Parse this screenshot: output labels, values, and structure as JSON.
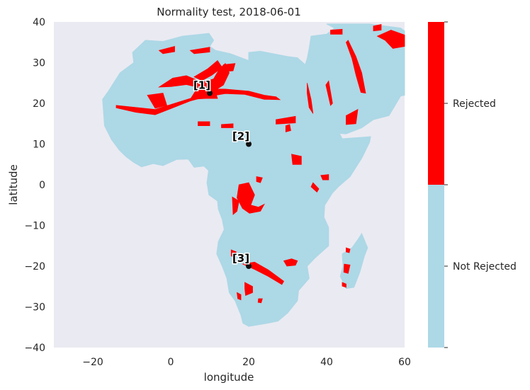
{
  "chart_data": {
    "type": "heatmap",
    "title": "Normality test, 2018-06-01",
    "xlabel": "longitude",
    "ylabel": "latitude",
    "xlim": [
      -30,
      60
    ],
    "ylim": [
      -40,
      40
    ],
    "xticks": [
      -20,
      0,
      20,
      40,
      60
    ],
    "xtick_labels": [
      "−20",
      "0",
      "20",
      "40",
      "60"
    ],
    "yticks": [
      -40,
      -30,
      -20,
      -10,
      0,
      10,
      20,
      30,
      40
    ],
    "ytick_labels": [
      "−40",
      "−30",
      "−20",
      "−10",
      "0",
      "10",
      "20",
      "30",
      "40"
    ],
    "grid": false,
    "background_color": "#eaeaf2",
    "categories": [
      {
        "label": "Not Rejected",
        "color": "#add8e6"
      },
      {
        "label": "Rejected",
        "color": "#ff0000"
      }
    ],
    "colorbar": {
      "labels": [
        "Not Rejected",
        "Rejected"
      ]
    },
    "markers": [
      {
        "label": "[1]",
        "lon": 10,
        "lat": 22.5
      },
      {
        "label": "[2]",
        "lon": 20,
        "lat": 10
      },
      {
        "label": "[3]",
        "lon": 20,
        "lat": -20
      }
    ],
    "land_outline": [
      [
        -17,
        14.5
      ],
      [
        -17.5,
        21
      ],
      [
        -16,
        23
      ],
      [
        -13,
        27.5
      ],
      [
        -9.5,
        30
      ],
      [
        -9.8,
        32.5
      ],
      [
        -6.5,
        35.5
      ],
      [
        -2,
        35.2
      ],
      [
        3,
        36.5
      ],
      [
        9.8,
        37.2
      ],
      [
        11,
        35.5
      ],
      [
        10,
        34
      ],
      [
        11.5,
        33
      ],
      [
        15.3,
        32.2
      ],
      [
        20,
        30.5
      ],
      [
        20,
        32.5
      ],
      [
        23,
        32.8
      ],
      [
        30,
        31.5
      ],
      [
        32.5,
        31.2
      ],
      [
        34.5,
        29.5
      ],
      [
        35,
        31
      ],
      [
        35.5,
        33.5
      ],
      [
        36,
        36.5
      ],
      [
        40,
        37
      ],
      [
        42,
        38.5
      ],
      [
        40,
        39.5
      ],
      [
        51,
        39.5
      ],
      [
        59,
        38.5
      ],
      [
        60,
        37.8
      ],
      [
        60,
        22
      ],
      [
        59,
        21.8
      ],
      [
        56,
        17
      ],
      [
        52,
        16
      ],
      [
        49,
        14
      ],
      [
        45,
        12.5
      ],
      [
        43.3,
        12.6
      ],
      [
        44,
        11.3
      ],
      [
        51.3,
        11.8
      ],
      [
        51,
        10.4
      ],
      [
        49,
        6.5
      ],
      [
        46,
        2
      ],
      [
        43,
        -0.5
      ],
      [
        41.5,
        -2
      ],
      [
        39.5,
        -5
      ],
      [
        39.3,
        -8
      ],
      [
        40.5,
        -10.5
      ],
      [
        40.5,
        -15
      ],
      [
        37,
        -18
      ],
      [
        35,
        -20
      ],
      [
        35.5,
        -23
      ],
      [
        32.8,
        -26
      ],
      [
        32.5,
        -28.5
      ],
      [
        30,
        -31.5
      ],
      [
        27.5,
        -33.5
      ],
      [
        25,
        -34
      ],
      [
        20,
        -34.8
      ],
      [
        18.5,
        -34
      ],
      [
        18,
        -32
      ],
      [
        16.5,
        -28.5
      ],
      [
        15,
        -26.5
      ],
      [
        14.4,
        -23
      ],
      [
        13.2,
        -20
      ],
      [
        11.8,
        -17
      ],
      [
        12.2,
        -14
      ],
      [
        13.7,
        -11
      ],
      [
        13.2,
        -8.5
      ],
      [
        12.2,
        -6
      ],
      [
        12,
        -4
      ],
      [
        9.8,
        -2.5
      ],
      [
        9.3,
        0.5
      ],
      [
        9.7,
        3.5
      ],
      [
        8.5,
        4.6
      ],
      [
        6,
        4.3
      ],
      [
        4.5,
        6.3
      ],
      [
        1.5,
        6.2
      ],
      [
        -2,
        4.7
      ],
      [
        -4.5,
        5.2
      ],
      [
        -7.5,
        4.4
      ],
      [
        -9.5,
        5.5
      ],
      [
        -11.5,
        6.9
      ],
      [
        -13.2,
        8.5
      ],
      [
        -15.2,
        11.1
      ]
    ],
    "rejected_regions": [
      [
        [
          -14,
          19.5
        ],
        [
          -9,
          19
        ],
        [
          -4,
          18.5
        ],
        [
          1,
          20
        ],
        [
          6,
          21.5
        ],
        [
          10,
          23.5
        ],
        [
          14,
          23.5
        ],
        [
          20,
          23
        ],
        [
          24,
          22
        ],
        [
          27,
          21.6
        ],
        [
          28,
          20.9
        ],
        [
          24,
          21
        ],
        [
          19,
          22.2
        ],
        [
          14,
          22.4
        ],
        [
          9,
          21.6
        ],
        [
          5,
          20.6
        ],
        [
          0,
          18.7
        ],
        [
          -4,
          17.2
        ],
        [
          -9,
          17.8
        ],
        [
          -14,
          18.9
        ]
      ],
      [
        [
          -3,
          24
        ],
        [
          0.5,
          26.2
        ],
        [
          4,
          26.8
        ],
        [
          8,
          25.2
        ],
        [
          11,
          26
        ],
        [
          12.5,
          28.5
        ],
        [
          14,
          29.8
        ],
        [
          15,
          27.5
        ],
        [
          13.5,
          24.5
        ],
        [
          11,
          23
        ],
        [
          8,
          23.7
        ],
        [
          4,
          24.6
        ],
        [
          0,
          24.1
        ]
      ],
      [
        [
          6,
          26.5
        ],
        [
          9.5,
          28.5
        ],
        [
          12,
          30.5
        ],
        [
          13.2,
          28.8
        ],
        [
          10.5,
          26.9
        ],
        [
          8,
          25.6
        ]
      ],
      [
        [
          5,
          21
        ],
        [
          9,
          21.2
        ],
        [
          12,
          21.2
        ],
        [
          11,
          24
        ],
        [
          7,
          24
        ]
      ],
      [
        [
          -6,
          22
        ],
        [
          -2,
          22.5
        ],
        [
          -1,
          19.5
        ],
        [
          -4,
          18.8
        ]
      ],
      [
        [
          -3,
          33
        ],
        [
          1,
          34
        ],
        [
          1,
          32.7
        ],
        [
          -2,
          32.2
        ]
      ],
      [
        [
          5,
          33
        ],
        [
          10,
          33.8
        ],
        [
          10,
          32.6
        ],
        [
          6,
          32.2
        ]
      ],
      [
        [
          13.5,
          29.5
        ],
        [
          16.5,
          29.8
        ],
        [
          16,
          28
        ],
        [
          14,
          27.8
        ]
      ],
      [
        [
          7,
          15.5
        ],
        [
          10,
          15.5
        ],
        [
          10,
          14.5
        ],
        [
          7,
          14.5
        ]
      ],
      [
        [
          13,
          14.8
        ],
        [
          16,
          15
        ],
        [
          16,
          14
        ],
        [
          13,
          14
        ]
      ],
      [
        [
          27,
          16
        ],
        [
          32,
          16.8
        ],
        [
          32,
          15.2
        ],
        [
          27,
          14.9
        ]
      ],
      [
        [
          35,
          25
        ],
        [
          36,
          21
        ],
        [
          36.5,
          17.5
        ],
        [
          35.5,
          19
        ],
        [
          35,
          22.5
        ]
      ],
      [
        [
          45.5,
          35.5
        ],
        [
          47.5,
          31.5
        ],
        [
          49,
          27.5
        ],
        [
          50,
          22.5
        ],
        [
          48.8,
          22.7
        ],
        [
          47.5,
          27
        ],
        [
          46.5,
          31
        ],
        [
          45,
          35
        ]
      ],
      [
        [
          40.5,
          25.5
        ],
        [
          41.5,
          20
        ],
        [
          41,
          19.5
        ],
        [
          39.8,
          24.5
        ]
      ],
      [
        [
          45,
          17
        ],
        [
          48,
          18.5
        ],
        [
          47.5,
          15
        ],
        [
          45,
          14.8
        ]
      ],
      [
        [
          53,
          36.5
        ],
        [
          56.5,
          38
        ],
        [
          60,
          36.8
        ],
        [
          60,
          34
        ],
        [
          57,
          33.5
        ],
        [
          55,
          35.5
        ]
      ],
      [
        [
          52,
          39
        ],
        [
          54,
          39.4
        ],
        [
          54,
          38
        ],
        [
          52,
          37.8
        ]
      ],
      [
        [
          41,
          38
        ],
        [
          44,
          38.2
        ],
        [
          44,
          37
        ],
        [
          41,
          37
        ]
      ],
      [
        [
          17.5,
          0
        ],
        [
          20,
          0.5
        ],
        [
          21.5,
          -2.5
        ],
        [
          20.5,
          -5
        ],
        [
          22.5,
          -5.5
        ],
        [
          24,
          -4.8
        ],
        [
          23,
          -6.5
        ],
        [
          20.2,
          -7
        ],
        [
          18.4,
          -5.8
        ],
        [
          17,
          -3.2
        ]
      ],
      [
        [
          15.8,
          -3
        ],
        [
          17.5,
          -4
        ],
        [
          17,
          -6.5
        ],
        [
          16,
          -7.3
        ]
      ],
      [
        [
          31,
          7.5
        ],
        [
          33.5,
          7
        ],
        [
          33.5,
          5
        ],
        [
          31.3,
          5
        ]
      ],
      [
        [
          22,
          2
        ],
        [
          23.5,
          1.7
        ],
        [
          23,
          0.5
        ],
        [
          22,
          0.8
        ]
      ],
      [
        [
          36.5,
          0.5
        ],
        [
          38,
          -1
        ],
        [
          37.5,
          -1.8
        ],
        [
          36,
          -0.5
        ]
      ],
      [
        [
          29.5,
          14.5
        ],
        [
          30.5,
          14.8
        ],
        [
          30.8,
          13.3
        ],
        [
          29.5,
          13
        ]
      ],
      [
        [
          38.5,
          2.3
        ],
        [
          40.5,
          2.5
        ],
        [
          40.5,
          1.2
        ],
        [
          39,
          1.2
        ]
      ],
      [
        [
          18.5,
          -19.5
        ],
        [
          21.5,
          -20.8
        ],
        [
          25,
          -22.5
        ],
        [
          28.5,
          -24.5
        ],
        [
          29,
          -23.7
        ],
        [
          25,
          -20.9
        ],
        [
          21.5,
          -19
        ]
      ],
      [
        [
          29,
          -18.7
        ],
        [
          31,
          -18.2
        ],
        [
          32.5,
          -18.7
        ],
        [
          32,
          -19.8
        ],
        [
          29.8,
          -20
        ]
      ],
      [
        [
          19,
          -24
        ],
        [
          21,
          -25
        ],
        [
          21,
          -26.5
        ],
        [
          19.2,
          -27.2
        ],
        [
          19,
          -25.5
        ]
      ],
      [
        [
          15.5,
          -16
        ],
        [
          16.8,
          -16.5
        ],
        [
          16.5,
          -18
        ],
        [
          15.5,
          -17.5
        ]
      ],
      [
        [
          17,
          -26.5
        ],
        [
          18,
          -27
        ],
        [
          18,
          -28.3
        ],
        [
          17.2,
          -28
        ]
      ],
      [
        [
          22.5,
          -28
        ],
        [
          23.5,
          -28
        ],
        [
          23.2,
          -29
        ],
        [
          22.4,
          -28.9
        ]
      ],
      [
        [
          44.5,
          -19.5
        ],
        [
          46,
          -19.7
        ],
        [
          45.5,
          -21.8
        ],
        [
          44.4,
          -21.5
        ]
      ],
      [
        [
          45,
          -15.5
        ],
        [
          46,
          -15.8
        ],
        [
          45.8,
          -16.7
        ],
        [
          45,
          -16.5
        ]
      ],
      [
        [
          44,
          -24
        ],
        [
          45,
          -24.4
        ],
        [
          45,
          -25.2
        ],
        [
          44,
          -24.9
        ]
      ]
    ],
    "madagascar": [
      [
        49,
        -12
      ],
      [
        50.5,
        -15.5
      ],
      [
        49.7,
        -17.5
      ],
      [
        48.5,
        -21.5
      ],
      [
        47,
        -25.2
      ],
      [
        45,
        -25.5
      ],
      [
        43.5,
        -22.5
      ],
      [
        44.2,
        -20
      ],
      [
        44,
        -17
      ],
      [
        46.5,
        -15.5
      ],
      [
        48,
        -13.5
      ]
    ]
  }
}
